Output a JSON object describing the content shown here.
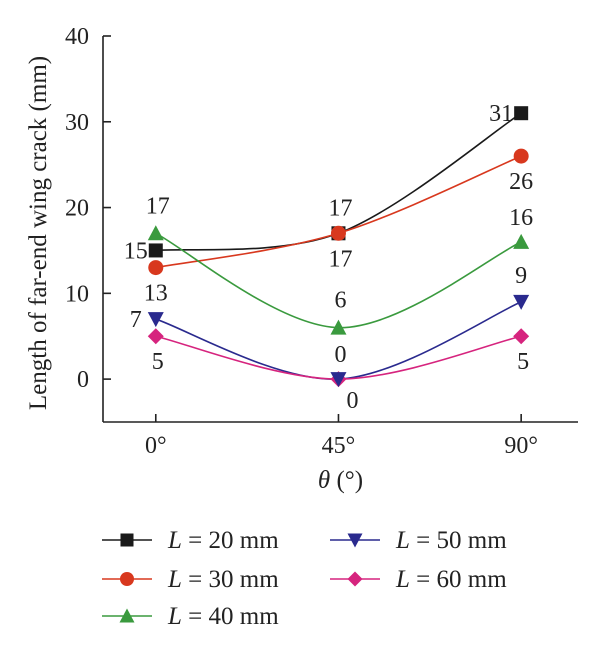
{
  "chart_data": {
    "type": "line",
    "xlabel_var": "θ",
    "xlabel_unit": " (°)",
    "ylabel": "Length of far-end wing crack (mm)",
    "categories": [
      "0°",
      "45°",
      "90°"
    ],
    "x": [
      0,
      45,
      90
    ],
    "xlim": [
      -13,
      104
    ],
    "ylim": [
      -5,
      40
    ],
    "yticks": [
      0,
      10,
      20,
      30,
      40
    ],
    "grid": false,
    "legend_position": "bottom",
    "series": [
      {
        "name": "L = 20 mm",
        "var": "L",
        "rest": " = 20 mm",
        "values": [
          15,
          17,
          31
        ],
        "color": "#1a1a1a",
        "marker": "square"
      },
      {
        "name": "L = 30 mm",
        "var": "L",
        "rest": " = 30 mm",
        "values": [
          13,
          17,
          26
        ],
        "color": "#d8381e",
        "marker": "circle"
      },
      {
        "name": "L = 40 mm",
        "var": "L",
        "rest": " = 40 mm",
        "values": [
          17,
          6,
          16
        ],
        "color": "#3a9a3e",
        "marker": "triangle-up"
      },
      {
        "name": "L = 50 mm",
        "var": "L",
        "rest": " = 50 mm",
        "values": [
          7,
          0,
          9
        ],
        "color": "#2a2a8e",
        "marker": "triangle-down"
      },
      {
        "name": "L = 60 mm",
        "var": "L",
        "rest": " = 60 mm",
        "values": [
          5,
          0,
          5
        ],
        "color": "#d6247e",
        "marker": "diamond"
      }
    ],
    "data_labels": [
      {
        "text": "15",
        "series": 0,
        "point": 0
      },
      {
        "text": "17",
        "series": 2,
        "point": 0
      },
      {
        "text": "13",
        "series": 1,
        "point": 0
      },
      {
        "text": "7",
        "series": 3,
        "point": 0
      },
      {
        "text": "5",
        "series": 4,
        "point": 0
      },
      {
        "text": "17",
        "series": 0,
        "point": 1
      },
      {
        "text": "17",
        "series": 1,
        "point": 1
      },
      {
        "text": "6",
        "series": 2,
        "point": 1
      },
      {
        "text": "0",
        "series": 3,
        "point": 1
      },
      {
        "text": "0",
        "series": 4,
        "point": 1
      },
      {
        "text": "31",
        "series": 0,
        "point": 2
      },
      {
        "text": "26",
        "series": 1,
        "point": 2
      },
      {
        "text": "16",
        "series": 2,
        "point": 2
      },
      {
        "text": "9",
        "series": 3,
        "point": 2
      },
      {
        "text": "5",
        "series": 4,
        "point": 2
      }
    ]
  }
}
